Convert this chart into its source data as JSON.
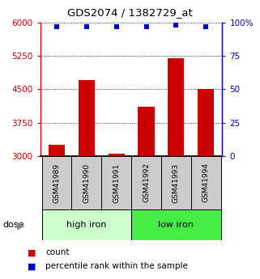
{
  "title": "GDS2074 / 1382729_at",
  "samples": [
    "GSM41989",
    "GSM41990",
    "GSM41991",
    "GSM41992",
    "GSM41993",
    "GSM41994"
  ],
  "counts": [
    3250,
    4700,
    3060,
    4100,
    5200,
    4500
  ],
  "percentiles": [
    97,
    97,
    97,
    97,
    98,
    97
  ],
  "ylim_left": [
    3000,
    6000
  ],
  "yticks_left": [
    3000,
    3750,
    4500,
    5250,
    6000
  ],
  "ylim_right": [
    0,
    100
  ],
  "yticks_right": [
    0,
    25,
    50,
    75,
    100
  ],
  "bar_color": "#cc0000",
  "dot_color": "#0000cc",
  "group_labels": [
    "high iron",
    "low iron"
  ],
  "group_ranges": [
    [
      0,
      3
    ],
    [
      3,
      6
    ]
  ],
  "group_color_high": "#ccffcc",
  "group_color_low": "#44ee44",
  "sample_bg_color": "#cccccc",
  "bar_width": 0.55,
  "left_axis_color": "#cc0000",
  "right_axis_color": "#0000cc",
  "legend_count_color": "#cc0000",
  "legend_pct_color": "#0000cc",
  "fig_width": 3.21,
  "fig_height": 3.45,
  "dpi": 100
}
